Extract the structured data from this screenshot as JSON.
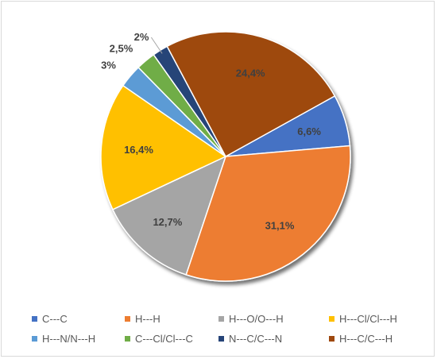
{
  "chart_data": {
    "type": "pie",
    "title": "",
    "start_angle_deg": 61,
    "direction": "clockwise",
    "legend_position": "bottom",
    "slices": [
      {
        "name": "C---C",
        "value": 6.6,
        "label": "6,6%",
        "color": "#4472c4"
      },
      {
        "name": "H---H",
        "value": 31.1,
        "label": "31,1%",
        "color": "#ed7d31"
      },
      {
        "name": "H---O/O---H",
        "value": 12.7,
        "label": "12,7%",
        "color": "#a5a5a5"
      },
      {
        "name": "H---Cl/Cl---H",
        "value": 16.4,
        "label": "16,4%",
        "color": "#ffc000"
      },
      {
        "name": "H---N/N---H",
        "value": 3,
        "label": "3%",
        "color": "#5b9bd5"
      },
      {
        "name": "C---Cl/Cl---C",
        "value": 2.5,
        "label": "2,5%",
        "color": "#70ad47"
      },
      {
        "name": "N---C/C---N",
        "value": 2,
        "label": "2%",
        "color": "#264478"
      },
      {
        "name": "H---C/C---H",
        "value": 24.4,
        "label": "24,4%",
        "color": "#9e480e"
      }
    ]
  }
}
